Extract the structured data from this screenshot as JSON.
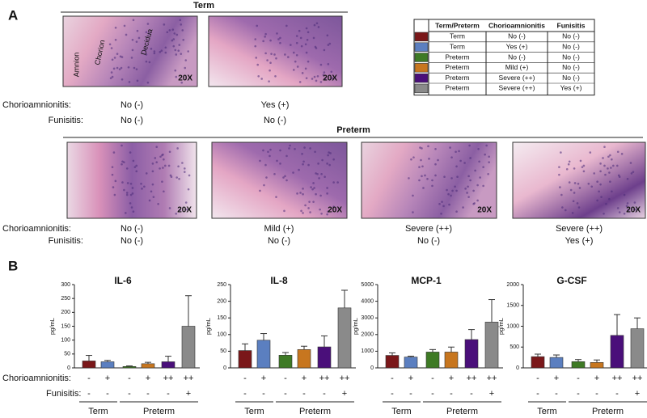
{
  "panel_a": {
    "label": "A",
    "row_labels": [
      "Chorioamnionitis:",
      "Funisitis:"
    ],
    "term": {
      "header": "Term",
      "images": [
        {
          "labels": [
            "Amnion",
            "Chorion",
            "Decidua"
          ],
          "magnification": "20X",
          "chorioamnionitis": "No (-)",
          "funisitis": "No (-)"
        },
        {
          "magnification": "20X",
          "chorioamnionitis": "Yes (+)",
          "funisitis": "No (-)"
        }
      ]
    },
    "preterm": {
      "header": "Preterm",
      "images": [
        {
          "magnification": "20X",
          "chorioamnionitis": "No (-)",
          "funisitis": "No (-)"
        },
        {
          "magnification": "20X",
          "chorioamnionitis": "Mild (+)",
          "funisitis": "No (-)"
        },
        {
          "magnification": "20X",
          "chorioamnionitis": "Severe (++)",
          "funisitis": "No (-)"
        },
        {
          "magnification": "20X",
          "chorioamnionitis": "Severe (++)",
          "funisitis": "Yes (+)"
        }
      ]
    },
    "table": {
      "headers": [
        "Term/Preterm",
        "Chorioamnionitis",
        "Funisitis"
      ],
      "rows": [
        {
          "color": "#7a1719",
          "cells": [
            "Term",
            "No (-)",
            "No (-)"
          ]
        },
        {
          "color": "#5b7fc0",
          "cells": [
            "Term",
            "Yes (+)",
            "No (-)"
          ]
        },
        {
          "color": "#3e7a25",
          "cells": [
            "Preterm",
            "No (-)",
            "No (-)"
          ]
        },
        {
          "color": "#c7761f",
          "cells": [
            "Preterm",
            "Mild (+)",
            "No (-)"
          ]
        },
        {
          "color": "#4a0f7a",
          "cells": [
            "Preterm",
            "Severe (++)",
            "No (-)"
          ]
        },
        {
          "color": "#8a8a8a",
          "cells": [
            "Preterm",
            "Severe (++)",
            "Yes (+)"
          ]
        }
      ]
    }
  },
  "panel_b": {
    "label": "B",
    "row_labels": [
      "Chorioamnionitis:",
      "Funisitis:"
    ],
    "chorioamnionitis": [
      "-",
      "+",
      "-",
      "+",
      "++",
      "++"
    ],
    "funisitis": [
      "-",
      "-",
      "-",
      "-",
      "-",
      "+"
    ],
    "groups": [
      "Term",
      "Preterm"
    ]
  },
  "chart_data": [
    {
      "type": "bar",
      "title": "IL-6",
      "ylabel": "pg/mL",
      "values": [
        25,
        22,
        5,
        15,
        22,
        150
      ],
      "errors": [
        20,
        5,
        2,
        5,
        20,
        110
      ],
      "colors": [
        "#7a1719",
        "#5b7fc0",
        "#3e7a25",
        "#c7761f",
        "#4a0f7a",
        "#8a8a8a"
      ],
      "ylim": [
        0,
        300
      ],
      "yticks": [
        0,
        50,
        100,
        150,
        200,
        250,
        300
      ]
    },
    {
      "type": "bar",
      "title": "IL-8",
      "ylabel": "pg/mL",
      "values": [
        52,
        83,
        38,
        55,
        63,
        180
      ],
      "errors": [
        20,
        20,
        8,
        10,
        33,
        53
      ],
      "colors": [
        "#7a1719",
        "#5b7fc0",
        "#3e7a25",
        "#c7761f",
        "#4a0f7a",
        "#8a8a8a"
      ],
      "ylim": [
        0,
        250
      ],
      "yticks": [
        0,
        50,
        100,
        150,
        200,
        250
      ]
    },
    {
      "type": "bar",
      "title": "MCP-1",
      "ylabel": "pg/mL",
      "values": [
        750,
        650,
        950,
        950,
        1700,
        2750
      ],
      "errors": [
        150,
        50,
        150,
        300,
        600,
        1350
      ],
      "colors": [
        "#7a1719",
        "#5b7fc0",
        "#3e7a25",
        "#c7761f",
        "#4a0f7a",
        "#8a8a8a"
      ],
      "ylim": [
        0,
        5000
      ],
      "yticks": [
        0,
        1000,
        2000,
        3000,
        4000,
        5000
      ]
    },
    {
      "type": "bar",
      "title": "G-CSF",
      "ylabel": "pg/mL",
      "values": [
        270,
        250,
        150,
        130,
        780,
        940
      ],
      "errors": [
        60,
        60,
        50,
        60,
        500,
        260
      ],
      "colors": [
        "#7a1719",
        "#5b7fc0",
        "#3e7a25",
        "#c7761f",
        "#4a0f7a",
        "#8a8a8a"
      ],
      "ylim": [
        0,
        2000
      ],
      "yticks": [
        0,
        500,
        1000,
        1500,
        2000
      ]
    }
  ]
}
